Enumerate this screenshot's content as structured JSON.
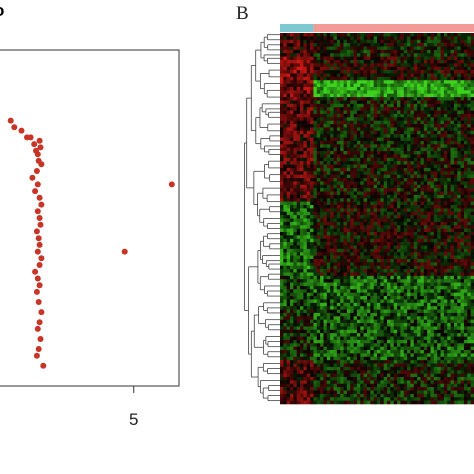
{
  "panel_a": {
    "title_fragment": "o"
  },
  "panel_b": {
    "letter": "B"
  },
  "colors": {
    "point": "#c63526",
    "group_bar_left": "#7ec8d2",
    "group_bar_right": "#f29b96",
    "heat_high": "#d42020",
    "heat_low": "#20d020",
    "heat_mid": "#000000",
    "dendrogram": "#444444"
  },
  "chart_data": [
    {
      "type": "scatter",
      "x_ticks": [
        5
      ],
      "x_tick_labels": [
        "5"
      ],
      "xlim": [
        -2.5,
        7.5
      ],
      "ylim": [
        0,
        100
      ],
      "grid": false,
      "series": [
        {
          "x": [
            -1.8,
            -1.6,
            -1.2,
            -0.9,
            -0.7,
            -0.5,
            -0.4,
            -0.3,
            -0.25,
            -0.2,
            -0.15,
            -0.1,
            -0.35,
            -0.6,
            -0.3,
            -0.45,
            -0.2,
            -0.1,
            -0.3,
            -0.2,
            -0.15,
            -0.35,
            -0.25,
            -0.2,
            -0.3,
            -0.1,
            -0.2,
            -0.45,
            -0.3,
            -0.2,
            -0.35,
            -0.25,
            -0.1,
            -0.2,
            -0.3,
            -0.15,
            -0.25,
            -0.35,
            0.0,
            4.5,
            7.1
          ],
          "y": [
            79,
            77,
            76,
            74,
            74,
            72,
            70,
            69,
            67,
            73,
            71,
            66,
            64,
            62,
            60,
            58,
            56,
            54,
            52,
            50,
            48,
            46,
            44,
            42,
            40,
            38,
            36,
            34,
            32,
            30,
            28,
            25,
            22,
            19,
            17,
            14,
            11,
            9,
            6,
            40,
            60
          ]
        }
      ]
    },
    {
      "type": "heatmap",
      "columns_groups": [
        {
          "count": 10
        },
        {
          "count": 48
        }
      ],
      "rows": 110,
      "value_range": [
        -1,
        1
      ]
    }
  ]
}
